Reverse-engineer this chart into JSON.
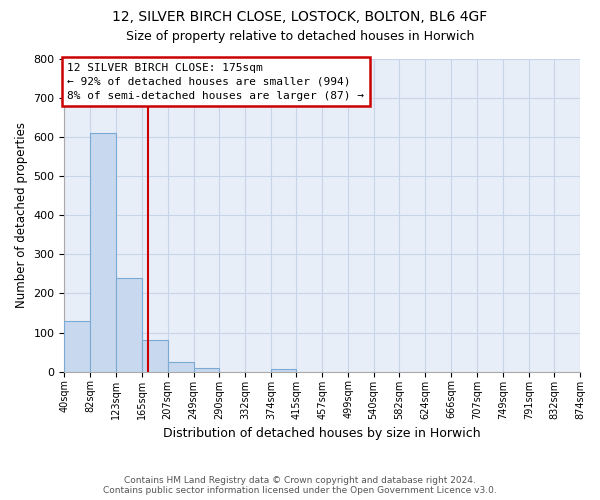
{
  "title1": "12, SILVER BIRCH CLOSE, LOSTOCK, BOLTON, BL6 4GF",
  "title2": "Size of property relative to detached houses in Horwich",
  "xlabel": "Distribution of detached houses by size in Horwich",
  "ylabel": "Number of detached properties",
  "footer1": "Contains HM Land Registry data © Crown copyright and database right 2024.",
  "footer2": "Contains public sector information licensed under the Open Government Licence v3.0.",
  "annotation_line1": "12 SILVER BIRCH CLOSE: 175sqm",
  "annotation_line2": "← 92% of detached houses are smaller (994)",
  "annotation_line3": "8% of semi-detached houses are larger (87) →",
  "property_size": 175,
  "bin_edges": [
    40,
    82,
    123,
    165,
    207,
    249,
    290,
    332,
    374,
    415,
    457,
    499,
    540,
    582,
    624,
    666,
    707,
    749,
    791,
    832,
    874
  ],
  "bar_heights": [
    130,
    610,
    240,
    80,
    25,
    10,
    0,
    0,
    8,
    0,
    0,
    0,
    0,
    0,
    0,
    0,
    0,
    0,
    0,
    0
  ],
  "bar_color": "#c8d8ee",
  "bar_edge_color": "#7baad4",
  "vline_color": "#cc0000",
  "annotation_box_color": "#cc0000",
  "grid_color": "#c8d4e8",
  "background_color": "#e8eef8",
  "ylim": [
    0,
    800
  ],
  "yticks": [
    0,
    100,
    200,
    300,
    400,
    500,
    600,
    700,
    800
  ]
}
